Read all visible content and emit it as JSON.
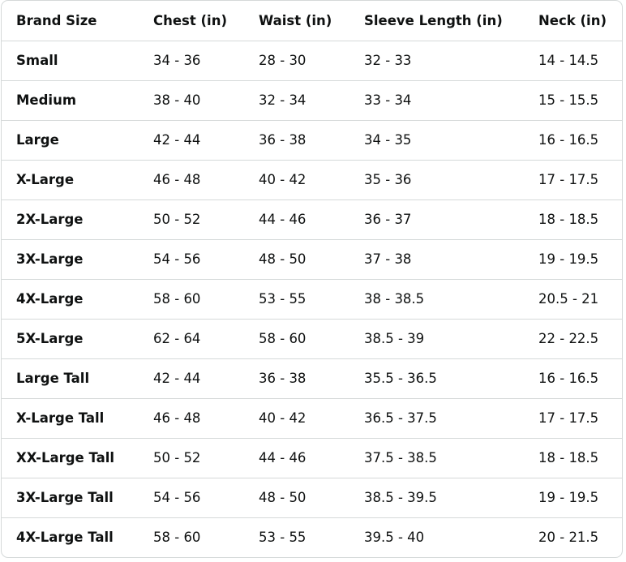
{
  "table": {
    "headers": [
      "Brand Size",
      "Chest (in)",
      "Waist (in)",
      "Sleeve Length (in)",
      "Neck (in)"
    ],
    "rows": [
      [
        "Small",
        "34 - 36",
        "28 - 30",
        "32 - 33",
        "14 - 14.5"
      ],
      [
        "Medium",
        "38 - 40",
        "32 - 34",
        "33 - 34",
        "15 - 15.5"
      ],
      [
        "Large",
        "42 - 44",
        "36 - 38",
        "34 - 35",
        "16 - 16.5"
      ],
      [
        "X-Large",
        "46 - 48",
        "40 - 42",
        "35 - 36",
        "17 - 17.5"
      ],
      [
        "2X-Large",
        "50 - 52",
        "44 - 46",
        "36 - 37",
        "18 - 18.5"
      ],
      [
        "3X-Large",
        "54 - 56",
        "48 - 50",
        "37 - 38",
        "19 - 19.5"
      ],
      [
        "4X-Large",
        "58 - 60",
        "53 - 55",
        "38 - 38.5",
        "20.5 - 21"
      ],
      [
        "5X-Large",
        "62 - 64",
        "58 - 60",
        "38.5 - 39",
        "22 - 22.5"
      ],
      [
        "Large Tall",
        "42 - 44",
        "36 - 38",
        "35.5 - 36.5",
        "16 - 16.5"
      ],
      [
        "X-Large Tall",
        "46 - 48",
        "40 - 42",
        "36.5 - 37.5",
        "17 - 17.5"
      ],
      [
        "XX-Large Tall",
        "50 - 52",
        "44 - 46",
        "37.5 - 38.5",
        "18 - 18.5"
      ],
      [
        "3X-Large Tall",
        "54 - 56",
        "48 - 50",
        "38.5 - 39.5",
        "19 - 19.5"
      ],
      [
        "4X-Large Tall",
        "58 - 60",
        "53 - 55",
        "39.5 - 40",
        "20 - 21.5"
      ]
    ]
  },
  "colors": {
    "text": "#0f1111",
    "border": "#d5d9d9"
  }
}
